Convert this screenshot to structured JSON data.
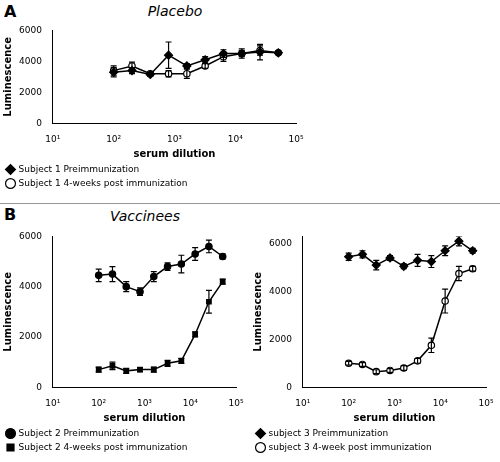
{
  "chart_data": [
    {
      "type": "line",
      "annotations": [
        "A"
      ],
      "title": "Placebo",
      "x_label": "serum dilution",
      "y_label": "Luminescence",
      "x": [
        100,
        200,
        400,
        800,
        1600,
        3200,
        6400,
        12800,
        25600,
        51200
      ],
      "series": [
        {
          "name": "Subject 1 Preimmunization",
          "color": "#000000",
          "marker": "diamond",
          "values": [
            3300,
            3400,
            3150,
            4400,
            3700,
            4100,
            4500,
            4500,
            4600,
            4550
          ],
          "errors": [
            300,
            200,
            100,
            850,
            150,
            200,
            250,
            200,
            500,
            100
          ]
        },
        {
          "name": "Subject 1 4-weeks post immunization",
          "color": "#000000",
          "marker": "open_circle",
          "values": [
            3400,
            3700,
            3200,
            3200,
            3200,
            3700,
            4300,
            4500,
            4700,
            4550
          ],
          "errors": [
            300,
            250,
            100,
            200,
            300,
            150,
            300,
            300,
            300,
            100
          ]
        }
      ],
      "xlim": [
        10,
        100000
      ],
      "xticks": [
        {
          "value": 10,
          "label": "10¹"
        },
        {
          "value": 100,
          "label": "10²"
        },
        {
          "value": 1000,
          "label": "10³"
        },
        {
          "value": 10000,
          "label": "10⁴"
        },
        {
          "value": 100000,
          "label": "10⁵"
        }
      ],
      "ylim": [
        0,
        6000
      ],
      "yticks": [
        0,
        2000,
        4000,
        6000
      ],
      "log": "x",
      "grid": false,
      "legend": "bottom"
    },
    {
      "type": "line",
      "annotations": [
        "B"
      ],
      "title": "Vaccinees",
      "x_label": "serum dilution",
      "y_label": "Luminescence",
      "x": [
        100,
        200,
        400,
        800,
        1600,
        3200,
        6400,
        12800,
        25600,
        51200
      ],
      "series": [
        {
          "name": "Subject 2 Preimmunization",
          "color": "#000000",
          "marker": "circle",
          "values": [
            4450,
            4500,
            4000,
            3800,
            4400,
            4800,
            4900,
            5300,
            5600,
            5200
          ],
          "errors": [
            250,
            300,
            200,
            150,
            200,
            150,
            350,
            250,
            250,
            100
          ]
        },
        {
          "name": "Subject 2 4-weeks post immunization",
          "color": "#000000",
          "marker": "square",
          "values": [
            700,
            850,
            650,
            700,
            700,
            950,
            1050,
            2100,
            3400,
            4200
          ],
          "errors": [
            100,
            150,
            100,
            80,
            100,
            120,
            100,
            100,
            450,
            100
          ]
        }
      ],
      "xlim": [
        10,
        100000
      ],
      "xticks": [
        {
          "value": 10,
          "label": "10¹"
        },
        {
          "value": 100,
          "label": "10²"
        },
        {
          "value": 1000,
          "label": "10³"
        },
        {
          "value": 10000,
          "label": "10⁴"
        },
        {
          "value": 100000,
          "label": "10⁵"
        }
      ],
      "ylim": [
        0,
        6000
      ],
      "yticks": [
        0,
        2000,
        4000,
        6000
      ],
      "log": "x",
      "grid": false,
      "legend": "bottom"
    },
    {
      "type": "line",
      "x_label": "serum dilution",
      "y_label": "Luminescence",
      "x": [
        100,
        200,
        400,
        800,
        1600,
        3200,
        6400,
        12800,
        25600,
        51200
      ],
      "series": [
        {
          "name": "subject 3 Preimmunization",
          "color": "#000000",
          "marker": "diamond",
          "values": [
            5450,
            5550,
            5100,
            5400,
            5050,
            5300,
            5250,
            5700,
            6100,
            5700
          ],
          "errors": [
            150,
            150,
            200,
            100,
            100,
            250,
            250,
            200,
            200,
            100
          ]
        },
        {
          "name": "subject 3 4-week post immunization",
          "color": "#000000",
          "marker": "open_circle",
          "values": [
            1000,
            950,
            650,
            700,
            800,
            1100,
            1750,
            3600,
            4750,
            4950
          ],
          "errors": [
            80,
            80,
            80,
            80,
            100,
            100,
            300,
            500,
            300,
            100
          ]
        }
      ],
      "xlim": [
        10,
        100000
      ],
      "xticks": [
        {
          "value": 10,
          "label": "10¹"
        },
        {
          "value": 100,
          "label": "10²"
        },
        {
          "value": 1000,
          "label": "10³"
        },
        {
          "value": 10000,
          "label": "10⁴"
        },
        {
          "value": 100000,
          "label": "10⁵"
        }
      ],
      "ylim": [
        0,
        6300
      ],
      "yticks": [
        0,
        2000,
        4000,
        6000
      ],
      "log": "x",
      "grid": false,
      "legend": "bottom"
    }
  ]
}
